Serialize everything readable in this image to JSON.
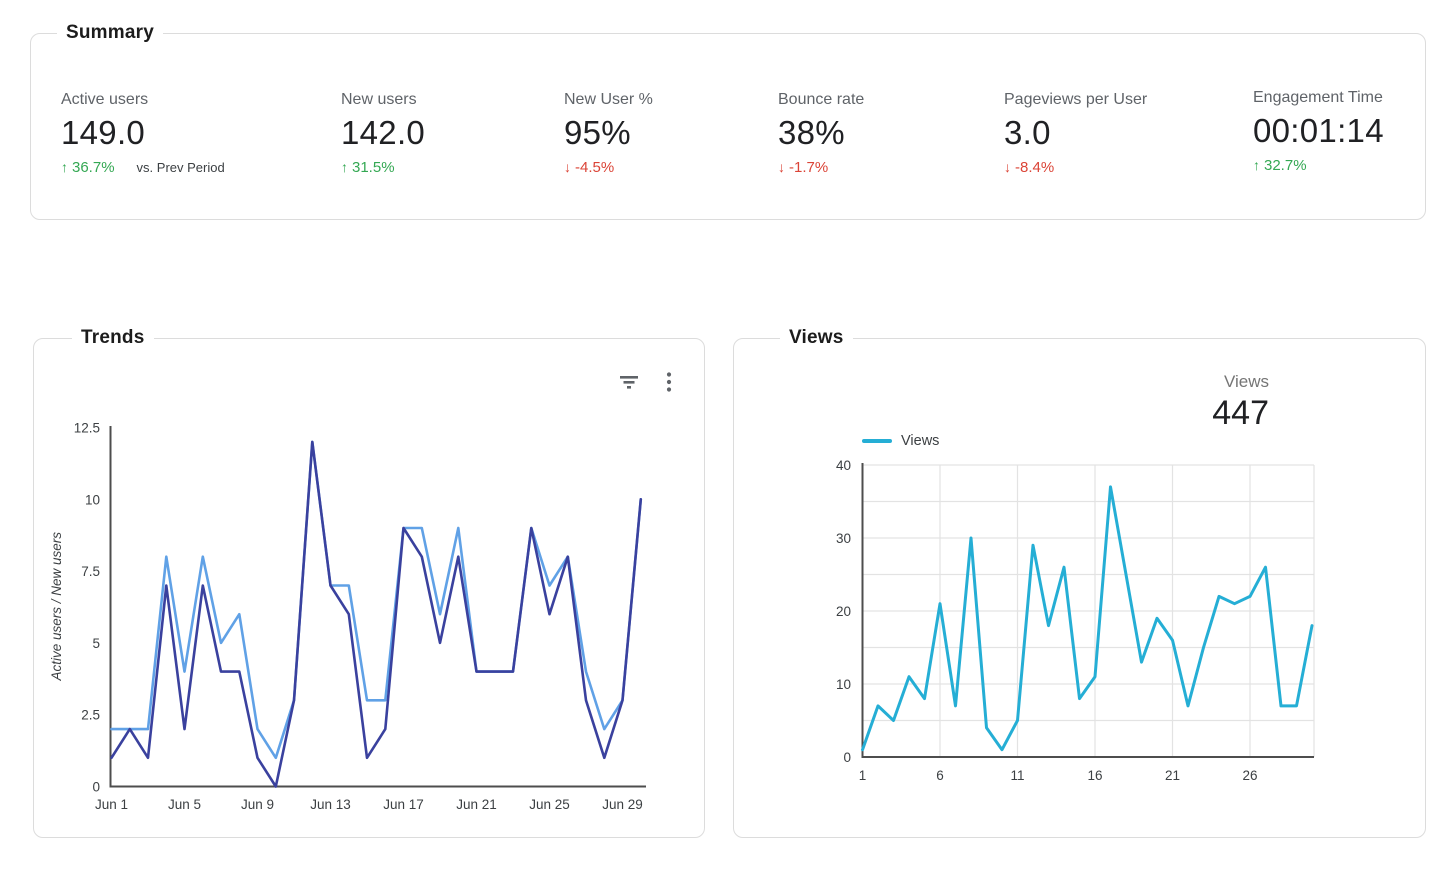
{
  "summary": {
    "title": "Summary",
    "compare_note": "vs. Prev Period",
    "metrics": [
      {
        "label": "Active users",
        "value": "149.0",
        "delta": "36.7%",
        "direction": "up"
      },
      {
        "label": "New users",
        "value": "142.0",
        "delta": "31.5%",
        "direction": "up"
      },
      {
        "label": "New User %",
        "value": "95%",
        "delta": "-4.5%",
        "direction": "down"
      },
      {
        "label": "Bounce rate",
        "value": "38%",
        "delta": "-1.7%",
        "direction": "down"
      },
      {
        "label": "Pageviews per User",
        "value": "3.0",
        "delta": "-8.4%",
        "direction": "down"
      },
      {
        "label": "Engagement Time",
        "value": "00:01:14",
        "delta": "32.7%",
        "direction": "up"
      }
    ]
  },
  "trends": {
    "title": "Trends",
    "toolbar": {
      "filter_icon": "filter-icon",
      "more_icon": "more-vert-icon"
    }
  },
  "views": {
    "title": "Views",
    "scorecard_label": "Views",
    "scorecard_value": "447",
    "legend_label": "Views"
  },
  "colors": {
    "up_green": "#34a853",
    "down_red": "#db4437",
    "active_users_line": "#60a1e6",
    "new_users_line": "#3a419e",
    "views_line": "#25aed5",
    "axis": "#4d4d4d",
    "grid": "#e3e3e3",
    "card_border": "#dcdcdc"
  },
  "chart_data": [
    {
      "id": "trends",
      "type": "line",
      "title": "Trends",
      "ylabel": "Active users / New users",
      "ylim": [
        0,
        12.5
      ],
      "grid": false,
      "legend": "none",
      "categories": [
        "Jun 1",
        "Jun 2",
        "Jun 3",
        "Jun 4",
        "Jun 5",
        "Jun 6",
        "Jun 7",
        "Jun 8",
        "Jun 9",
        "Jun 10",
        "Jun 11",
        "Jun 12",
        "Jun 13",
        "Jun 14",
        "Jun 15",
        "Jun 16",
        "Jun 17",
        "Jun 18",
        "Jun 19",
        "Jun 20",
        "Jun 21",
        "Jun 22",
        "Jun 23",
        "Jun 24",
        "Jun 25",
        "Jun 26",
        "Jun 27",
        "Jun 28",
        "Jun 29",
        "Jun 30"
      ],
      "x_ticks": [
        {
          "index": 0,
          "label": "Jun 1"
        },
        {
          "index": 4,
          "label": "Jun 5"
        },
        {
          "index": 8,
          "label": "Jun 9"
        },
        {
          "index": 12,
          "label": "Jun 13"
        },
        {
          "index": 16,
          "label": "Jun 17"
        },
        {
          "index": 20,
          "label": "Jun 21"
        },
        {
          "index": 24,
          "label": "Jun 25"
        },
        {
          "index": 28,
          "label": "Jun 29"
        }
      ],
      "y_ticks": [
        {
          "value": 0,
          "label": "0"
        },
        {
          "value": 2.5,
          "label": "2.5"
        },
        {
          "value": 5,
          "label": "5"
        },
        {
          "value": 7.5,
          "label": "7.5"
        },
        {
          "value": 10,
          "label": "10"
        },
        {
          "value": 12.5,
          "label": "12.5"
        }
      ],
      "series": [
        {
          "name": "Active users",
          "color": "#60a1e6",
          "values": [
            2,
            2,
            2,
            8,
            4,
            8,
            5,
            6,
            2,
            1,
            3,
            12,
            7,
            7,
            3,
            3,
            9,
            9,
            6,
            9,
            4,
            4,
            4,
            9,
            7,
            8,
            4,
            2,
            3,
            10
          ]
        },
        {
          "name": "New users",
          "color": "#3a419e",
          "values": [
            1,
            2,
            1,
            7,
            2,
            7,
            4,
            4,
            1,
            0,
            3,
            12,
            7,
            6,
            1,
            2,
            9,
            8,
            5,
            8,
            4,
            4,
            4,
            9,
            6,
            8,
            3,
            1,
            3,
            10
          ]
        }
      ]
    },
    {
      "id": "views",
      "type": "line",
      "title": "Views",
      "total_label": "Views",
      "total_value": 447,
      "ylim": [
        0,
        40
      ],
      "grid": true,
      "grid_step_y": 5,
      "legend_position": "top-left",
      "x": [
        1,
        2,
        3,
        4,
        5,
        6,
        7,
        8,
        9,
        10,
        11,
        12,
        13,
        14,
        15,
        16,
        17,
        18,
        19,
        20,
        21,
        22,
        23,
        24,
        25,
        26,
        27,
        28,
        29,
        30
      ],
      "x_ticks": [
        {
          "day": 1,
          "label": "1"
        },
        {
          "day": 6,
          "label": "6"
        },
        {
          "day": 11,
          "label": "11"
        },
        {
          "day": 16,
          "label": "16"
        },
        {
          "day": 21,
          "label": "21"
        },
        {
          "day": 26,
          "label": "26"
        }
      ],
      "y_ticks": [
        {
          "value": 0,
          "label": "0"
        },
        {
          "value": 10,
          "label": "10"
        },
        {
          "value": 20,
          "label": "20"
        },
        {
          "value": 30,
          "label": "30"
        },
        {
          "value": 40,
          "label": "40"
        }
      ],
      "series": [
        {
          "name": "Views",
          "color": "#25aed5",
          "values": [
            1,
            7,
            5,
            11,
            8,
            21,
            7,
            30,
            4,
            1,
            5,
            29,
            18,
            26,
            8,
            11,
            37,
            25,
            13,
            19,
            16,
            7,
            15,
            22,
            21,
            22,
            26,
            7,
            7,
            18
          ]
        }
      ]
    }
  ]
}
